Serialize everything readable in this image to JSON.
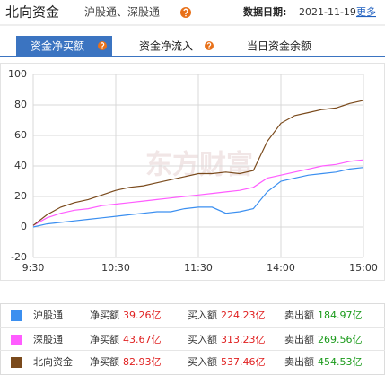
{
  "header": {
    "title": "北向资金",
    "subtitle": "沪股通、深股通",
    "date_label": "数据日期:",
    "date": "2021-11-19",
    "more": "更多"
  },
  "tabs": [
    "资金净买额",
    "资金净流入",
    "当日资金余额"
  ],
  "chart_data": {
    "type": "line",
    "watermark": "东方财富",
    "x": [
      0,
      10,
      20,
      30,
      40,
      50,
      60,
      70,
      80,
      90,
      100,
      110,
      120,
      130,
      140,
      150,
      160,
      170,
      180,
      190,
      200,
      210,
      220,
      230,
      240
    ],
    "xlim": [
      0,
      240
    ],
    "xticks": [
      {
        "value": 0,
        "label": "9:30"
      },
      {
        "value": 60,
        "label": "10:30"
      },
      {
        "value": 120,
        "label": "11:30"
      },
      {
        "value": 180,
        "label": "14:00"
      },
      {
        "value": 240,
        "label": "15:00"
      }
    ],
    "ylim": [
      -20,
      100
    ],
    "yticks": [
      -20,
      0,
      20,
      40,
      60,
      80,
      100
    ],
    "grid": true,
    "series": [
      {
        "name": "沪股通",
        "color": "#3b8ff0",
        "values": [
          0,
          2,
          3,
          4,
          5,
          6,
          7,
          8,
          9,
          10,
          10,
          12,
          13,
          13,
          9,
          10,
          12,
          23,
          30,
          32,
          34,
          35,
          36,
          38,
          39
        ]
      },
      {
        "name": "深股通",
        "color": "#ff5cff",
        "values": [
          1,
          6,
          9,
          11,
          12,
          14,
          15,
          16,
          17,
          18,
          19,
          20,
          21,
          22,
          23,
          24,
          26,
          32,
          34,
          36,
          38,
          40,
          41,
          43,
          44
        ]
      },
      {
        "name": "北向资金",
        "color": "#7a4a1c",
        "values": [
          1,
          8,
          13,
          16,
          18,
          21,
          24,
          26,
          27,
          29,
          31,
          33,
          35,
          35,
          36,
          35,
          37,
          56,
          68,
          73,
          75,
          77,
          78,
          81,
          83
        ]
      }
    ]
  },
  "table": {
    "columns": [
      "净买额",
      "买入额",
      "卖出额"
    ],
    "rows": [
      [
        "39.26亿",
        "224.23亿",
        "184.97亿"
      ],
      [
        "43.67亿",
        "313.23亿",
        "269.56亿"
      ],
      [
        "82.93亿",
        "537.46亿",
        "454.53亿"
      ]
    ]
  }
}
